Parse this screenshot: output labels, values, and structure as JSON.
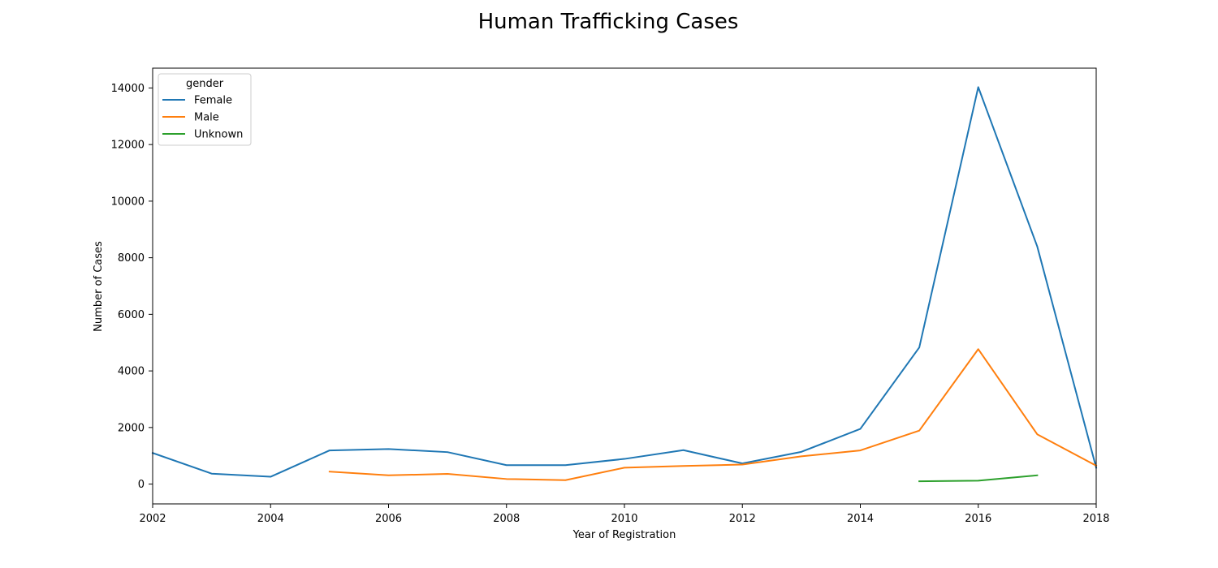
{
  "chart_data": {
    "type": "line",
    "title": "Human Trafficking Cases",
    "xlabel": "Year of Registration",
    "ylabel": "Number of Cases",
    "xlim": [
      2002,
      2018
    ],
    "ylim": [
      -700,
      14700
    ],
    "xticks": [
      2002,
      2004,
      2006,
      2008,
      2010,
      2012,
      2014,
      2016,
      2018
    ],
    "yticks": [
      0,
      2000,
      4000,
      6000,
      8000,
      10000,
      12000,
      14000
    ],
    "grid": false,
    "legend": {
      "title": "gender",
      "position": "top-left"
    },
    "series": [
      {
        "name": "Female",
        "color": "#1f77b4",
        "x": [
          2002,
          2003,
          2004,
          2005,
          2006,
          2007,
          2008,
          2009,
          2010,
          2011,
          2012,
          2013,
          2014,
          2015,
          2016,
          2017,
          2018
        ],
        "y": [
          1100,
          370,
          260,
          1190,
          1240,
          1130,
          670,
          670,
          890,
          1200,
          730,
          1140,
          1950,
          4830,
          14030,
          8400,
          580
        ]
      },
      {
        "name": "Male",
        "color": "#ff7f0e",
        "x": [
          2005,
          2006,
          2007,
          2008,
          2009,
          2010,
          2011,
          2012,
          2013,
          2014,
          2015,
          2016,
          2017,
          2018
        ],
        "y": [
          440,
          310,
          360,
          180,
          140,
          580,
          640,
          690,
          980,
          1190,
          1890,
          4770,
          1760,
          650
        ]
      },
      {
        "name": "Unknown",
        "color": "#2ca02c",
        "x": [
          2015,
          2016,
          2017
        ],
        "y": [
          100,
          120,
          310
        ]
      }
    ]
  }
}
